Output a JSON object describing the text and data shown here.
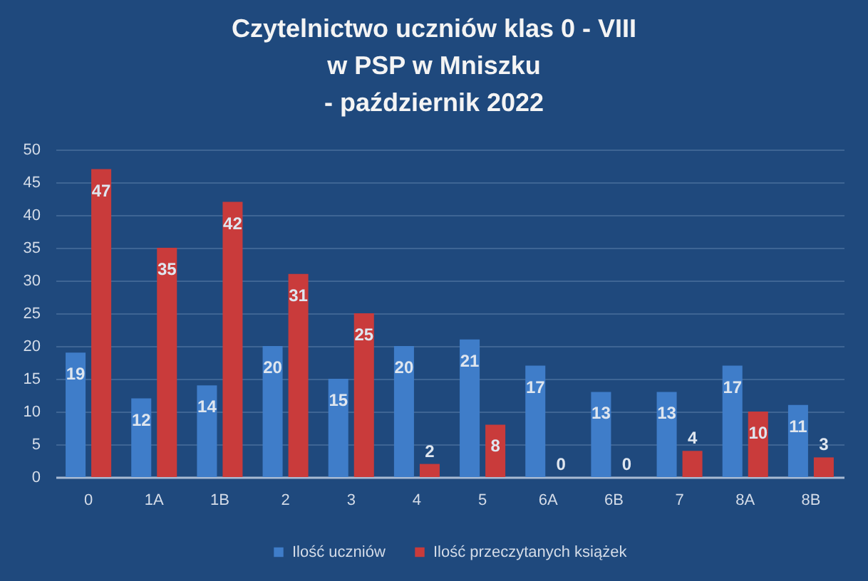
{
  "chart_data": {
    "type": "bar",
    "title": "Czytelnictwo uczniów klas 0 - VIII\nw PSP w Mniszku\n- październik 2022",
    "categories": [
      "0",
      "1A",
      "1B",
      "2",
      "3",
      "4",
      "5",
      "6A",
      "6B",
      "7",
      "8A",
      "8B"
    ],
    "series": [
      {
        "name": "Ilość uczniów",
        "color": "#3f7dc9",
        "values": [
          19,
          12,
          14,
          20,
          15,
          20,
          21,
          17,
          13,
          13,
          17,
          11
        ]
      },
      {
        "name": "Ilość przeczytanych książek",
        "color": "#c93b3b",
        "values": [
          47,
          35,
          42,
          31,
          25,
          2,
          8,
          0,
          0,
          4,
          10,
          3
        ]
      }
    ],
    "ylim": [
      0,
      50
    ],
    "yticks": [
      0,
      5,
      10,
      15,
      20,
      25,
      30,
      35,
      40,
      45,
      50
    ],
    "grid": "y",
    "legend": "bottom",
    "data_labels": true
  }
}
